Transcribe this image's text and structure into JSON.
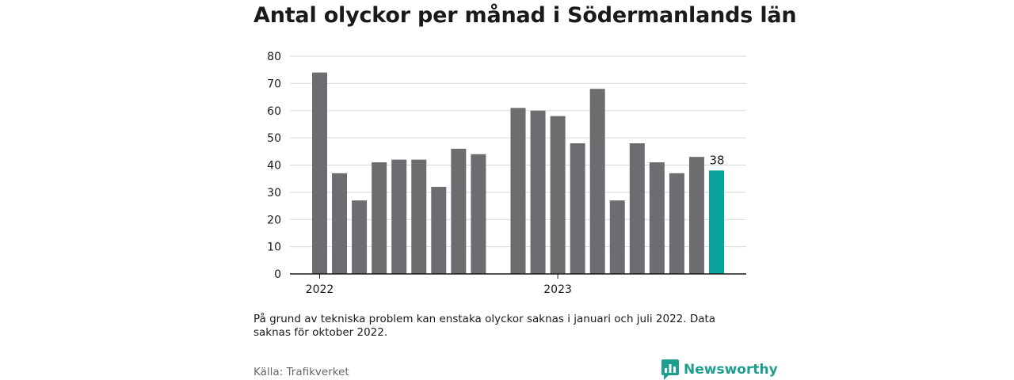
{
  "colors": {
    "bar": "#6d6c71",
    "highlight": "#0aa39b",
    "grid": "#d9d9d9",
    "axis": "#1a1a1a",
    "brand": "#1f9e8f"
  },
  "chart_data": {
    "type": "bar",
    "title": "Antal olyckor per månad i Södermanlands län",
    "ylim": [
      0,
      80
    ],
    "yticks": [
      0,
      10,
      20,
      30,
      40,
      50,
      60,
      70,
      80
    ],
    "grid": true,
    "categories": [
      "2022-01",
      "2022-02",
      "2022-03",
      "2022-04",
      "2022-05",
      "2022-06",
      "2022-07",
      "2022-08",
      "2022-09",
      "2022-10",
      "2022-11",
      "2022-12",
      "2023-01",
      "2023-02",
      "2023-03",
      "2023-04",
      "2023-05",
      "2023-06",
      "2023-07",
      "2023-08",
      "2023-09"
    ],
    "values": [
      74,
      37,
      27,
      41,
      42,
      42,
      32,
      46,
      44,
      null,
      61,
      60,
      58,
      48,
      68,
      27,
      48,
      41,
      37,
      43,
      38
    ],
    "year_labels": [
      {
        "label": "2022",
        "at": "2022-01"
      },
      {
        "label": "2023",
        "at": "2023-01"
      }
    ],
    "highlight": {
      "category": "2023-09",
      "label": "38"
    }
  },
  "note": "På grund av tekniska problem kan enstaka olyckor saknas i januari och juli 2022. Data saknas för oktober 2022.",
  "source": "Källa: Trafikverket",
  "brand": {
    "name": "Newsworthy",
    "icon": "newsworthy-logo-icon"
  }
}
